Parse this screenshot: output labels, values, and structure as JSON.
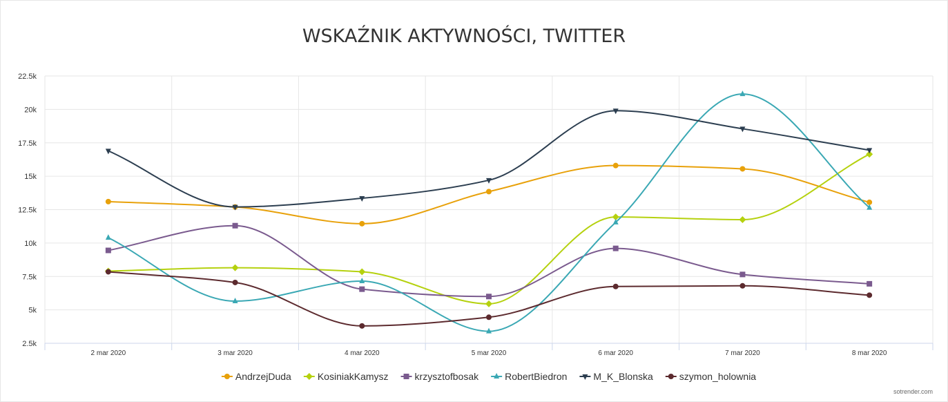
{
  "chart_data": {
    "type": "line",
    "title": "WSKAŹNIK AKTYWNOŚCI, TWITTER",
    "categories": [
      "2 mar 2020",
      "3 mar 2020",
      "4 mar 2020",
      "5 mar 2020",
      "6 mar 2020",
      "7 mar 2020",
      "8 mar 2020"
    ],
    "ylim": [
      2500,
      22500
    ],
    "yticks": [
      2500,
      5000,
      7500,
      10000,
      12500,
      15000,
      17500,
      20000,
      22500
    ],
    "ytick_labels": [
      "2.5k",
      "5k",
      "7.5k",
      "10k",
      "12.5k",
      "15k",
      "17.5k",
      "20k",
      "22.5k"
    ],
    "grid": true,
    "legend_position": "bottom",
    "series": [
      {
        "name": "AndrzejDuda",
        "color": "#e8a10a",
        "marker": "circle",
        "values": [
          13100,
          12700,
          11450,
          13850,
          15800,
          15550,
          13050
        ]
      },
      {
        "name": "KosiniakKamysz",
        "color": "#b5d10e",
        "marker": "diamond",
        "values": [
          7900,
          8150,
          7850,
          5450,
          11950,
          11750,
          16650
        ]
      },
      {
        "name": "krzysztofbosak",
        "color": "#7a5a8e",
        "marker": "square",
        "values": [
          9450,
          11300,
          6550,
          6000,
          9600,
          7650,
          6950
        ]
      },
      {
        "name": "RobertBiedron",
        "color": "#3aa8b4",
        "marker": "triangle",
        "values": [
          10400,
          5650,
          7150,
          3400,
          11550,
          21150,
          12650
        ]
      },
      {
        "name": "M_K_Blonska",
        "color": "#2c3e50",
        "marker": "triangle-down",
        "values": [
          16900,
          12700,
          13350,
          14700,
          19900,
          18550,
          16950
        ]
      },
      {
        "name": "szymon_holownia",
        "color": "#5c2a2e",
        "marker": "circle",
        "values": [
          7850,
          7050,
          3800,
          4450,
          6750,
          6800,
          6100
        ]
      }
    ]
  },
  "credit": "sotrender.com"
}
